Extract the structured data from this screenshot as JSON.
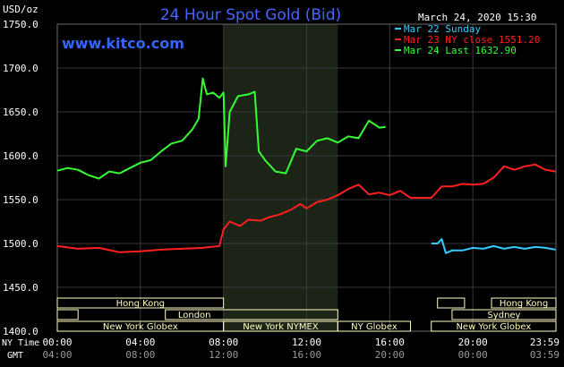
{
  "header": {
    "title": "24 Hour Spot Gold (Bid)",
    "units": "USD/oz",
    "timestamp": "March 24, 2020 15:30",
    "website": "www.kitco.com"
  },
  "legend": [
    {
      "label": "Mar 22 Sunday",
      "color": "#33ccff"
    },
    {
      "label": "Mar 23 NY close 1551.20",
      "color": "#ff2020"
    },
    {
      "label": "Mar 24 Last 1632.90",
      "color": "#33ff33"
    }
  ],
  "axes": {
    "y_ticks": [
      1400,
      1450,
      1500,
      1550,
      1600,
      1650,
      1700,
      1750
    ],
    "y_tick_labels": [
      "1400.0",
      "1450.0",
      "1500.0",
      "1550.0",
      "1600.0",
      "1650.0",
      "1700.0",
      "1750.0"
    ],
    "ny_label": "NY Time",
    "gmt_label": "GMT",
    "ny_ticks": [
      "00:00",
      "04:00",
      "08:00",
      "12:00",
      "16:00",
      "20:00",
      "23:59"
    ],
    "gmt_ticks": [
      "04:00",
      "08:00",
      "12:00",
      "16:00",
      "20:00",
      "00:00",
      "03:59"
    ]
  },
  "sessions": {
    "left": [
      "Hong Kong",
      "London",
      "New York Globex",
      "New York NYMEX",
      "NY Globex"
    ],
    "right": [
      "Hong Kong",
      "Sydney",
      "New York Globex"
    ]
  },
  "colors": {
    "background": "#000000",
    "grid": "#3a3a3a",
    "shade": "#1c2418",
    "session_fill": "#ffffc0",
    "title": "#4466ff",
    "website": "#3366ff"
  },
  "chart_data": {
    "type": "line",
    "title": "24 Hour Spot Gold (Bid)",
    "ylabel": "USD/oz",
    "ylim": [
      1400,
      1750
    ],
    "xlim_hours_ny": [
      0,
      24
    ],
    "grid": true,
    "shaded_hours_ny": [
      8,
      13.5
    ],
    "series": [
      {
        "name": "Mar 22 Sunday",
        "color": "#33ccff",
        "points": [
          [
            18.0,
            1500
          ],
          [
            18.3,
            1500
          ],
          [
            18.5,
            1505
          ],
          [
            18.7,
            1489
          ],
          [
            19.0,
            1492
          ],
          [
            19.5,
            1492
          ],
          [
            20.0,
            1495
          ],
          [
            20.5,
            1494
          ],
          [
            21.0,
            1497
          ],
          [
            21.5,
            1494
          ],
          [
            22.0,
            1496
          ],
          [
            22.5,
            1494
          ],
          [
            23.0,
            1496
          ],
          [
            23.5,
            1495
          ],
          [
            23.98,
            1493
          ]
        ]
      },
      {
        "name": "Mar 23 NY close 1551.20",
        "color": "#ff2020",
        "points": [
          [
            0,
            1497
          ],
          [
            1,
            1494
          ],
          [
            2,
            1495
          ],
          [
            3,
            1490
          ],
          [
            4,
            1491
          ],
          [
            5,
            1493
          ],
          [
            6,
            1494
          ],
          [
            7,
            1495
          ],
          [
            7.8,
            1497
          ],
          [
            8.0,
            1516
          ],
          [
            8.3,
            1525
          ],
          [
            8.8,
            1520
          ],
          [
            9.2,
            1527
          ],
          [
            9.8,
            1526
          ],
          [
            10.2,
            1530
          ],
          [
            10.7,
            1533
          ],
          [
            11.2,
            1538
          ],
          [
            11.7,
            1545
          ],
          [
            12.0,
            1540
          ],
          [
            12.5,
            1547
          ],
          [
            13.0,
            1550
          ],
          [
            13.5,
            1555
          ],
          [
            14.0,
            1562
          ],
          [
            14.5,
            1567
          ],
          [
            15.0,
            1556
          ],
          [
            15.5,
            1558
          ],
          [
            16.0,
            1555
          ],
          [
            16.5,
            1560
          ],
          [
            17.0,
            1552
          ],
          [
            17.5,
            1552
          ],
          [
            18.0,
            1552
          ],
          [
            18.5,
            1565
          ],
          [
            19.0,
            1565
          ],
          [
            19.5,
            1568
          ],
          [
            20.0,
            1567
          ],
          [
            20.5,
            1568
          ],
          [
            21.0,
            1575
          ],
          [
            21.5,
            1588
          ],
          [
            22.0,
            1584
          ],
          [
            22.5,
            1588
          ],
          [
            23.0,
            1590
          ],
          [
            23.5,
            1584
          ],
          [
            23.98,
            1582
          ]
        ]
      },
      {
        "name": "Mar 24 Last 1632.90",
        "color": "#33ff33",
        "points": [
          [
            0,
            1583
          ],
          [
            0.5,
            1586
          ],
          [
            1.0,
            1584
          ],
          [
            1.5,
            1578
          ],
          [
            2.0,
            1574
          ],
          [
            2.5,
            1582
          ],
          [
            3.0,
            1580
          ],
          [
            3.5,
            1586
          ],
          [
            4.0,
            1592
          ],
          [
            4.5,
            1595
          ],
          [
            5.0,
            1605
          ],
          [
            5.5,
            1614
          ],
          [
            6.0,
            1617
          ],
          [
            6.5,
            1630
          ],
          [
            6.8,
            1642
          ],
          [
            7.0,
            1688
          ],
          [
            7.2,
            1670
          ],
          [
            7.5,
            1672
          ],
          [
            7.8,
            1666
          ],
          [
            8.0,
            1672
          ],
          [
            8.1,
            1588
          ],
          [
            8.3,
            1650
          ],
          [
            8.7,
            1668
          ],
          [
            9.2,
            1670
          ],
          [
            9.5,
            1673
          ],
          [
            9.7,
            1605
          ],
          [
            10.0,
            1595
          ],
          [
            10.5,
            1582
          ],
          [
            11.0,
            1580
          ],
          [
            11.5,
            1608
          ],
          [
            12.0,
            1605
          ],
          [
            12.5,
            1617
          ],
          [
            13.0,
            1620
          ],
          [
            13.5,
            1615
          ],
          [
            14.0,
            1622
          ],
          [
            14.5,
            1620
          ],
          [
            15.0,
            1640
          ],
          [
            15.5,
            1632
          ],
          [
            15.8,
            1633
          ]
        ]
      }
    ]
  }
}
